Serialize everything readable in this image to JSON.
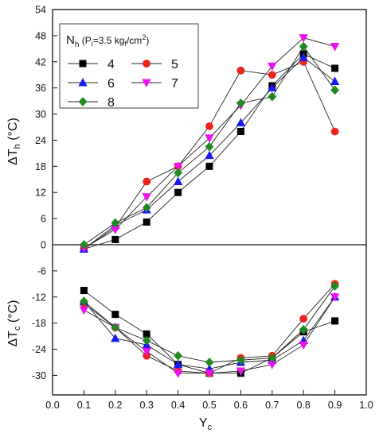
{
  "chart_data": {
    "type": "line",
    "x": [
      0.1,
      0.2,
      0.3,
      0.4,
      0.5,
      0.6,
      0.7,
      0.8,
      0.9
    ],
    "xlabel": "Y",
    "xlabel_sub": "c",
    "xlim": [
      0.0,
      1.0
    ],
    "xticks": [
      "0.0",
      "0.1",
      "0.2",
      "0.3",
      "0.4",
      "0.5",
      "0.6",
      "0.7",
      "0.8",
      "0.9",
      "1.0"
    ],
    "ylim": [
      -32,
      54
    ],
    "yticks": [
      "54",
      "48",
      "42",
      "36",
      "30",
      "24",
      "18",
      "12",
      "6",
      "0",
      "-6",
      "-12",
      "-18",
      "-24",
      "-30"
    ],
    "ylabel_top": "ΔT",
    "ylabel_top_sub": "h",
    "ylabel_top_unit": " (°C)",
    "ylabel_bottom": "ΔT",
    "ylabel_bottom_sub": "c",
    "ylabel_bottom_unit": " (°C)",
    "grid": false,
    "legend": {
      "placement": "top-left",
      "title_main": "N",
      "title_sub": "h",
      "title_rest": " (P",
      "title_sub2": "i",
      "title_rest2": "=3.5 kg",
      "title_sub3": "f",
      "title_rest3": "/cm",
      "title_sup": "2",
      "title_end": ")"
    },
    "series": [
      {
        "name": "4",
        "color": "#000000",
        "marker": "square",
        "hot": [
          -1.0,
          1.2,
          5.2,
          12.0,
          18.0,
          26.0,
          36.5,
          43.8,
          40.5
        ],
        "cold": [
          -10.5,
          -16.0,
          -20.5,
          -27.5,
          -29.5,
          -29.5,
          -26.0,
          -20.0,
          -17.5
        ]
      },
      {
        "name": "5",
        "color": "#e8251e",
        "marker": "circle",
        "hot": [
          -1.0,
          4.0,
          14.5,
          18.0,
          27.2,
          40.0,
          39.0,
          42.0,
          26.0
        ],
        "cold": [
          -13.5,
          -19.0,
          -25.5,
          -29.0,
          -29.5,
          -26.0,
          -25.5,
          -17.0,
          -9.0
        ]
      },
      {
        "name": "6",
        "color": "#1a1aef",
        "marker": "triangle-up",
        "hot": [
          -1.0,
          4.5,
          8.0,
          14.5,
          20.5,
          28.0,
          36.0,
          43.0,
          37.5
        ],
        "cold": [
          -13.0,
          -21.5,
          -23.0,
          -27.5,
          -28.5,
          -27.0,
          -26.5,
          -22.0,
          -12.0
        ]
      },
      {
        "name": "7",
        "color": "#ef10ef",
        "marker": "triangle-down",
        "hot": [
          -0.8,
          3.5,
          11.0,
          18.0,
          24.5,
          32.0,
          41.0,
          47.5,
          45.5
        ],
        "cold": [
          -15.0,
          -19.0,
          -24.5,
          -29.5,
          -29.5,
          -29.0,
          -27.5,
          -23.0,
          -12.0
        ]
      },
      {
        "name": "8",
        "color": "#1f8a1f",
        "marker": "diamond",
        "hot": [
          0.0,
          5.0,
          8.5,
          16.5,
          22.5,
          32.5,
          34.0,
          45.5,
          35.5
        ],
        "cold": [
          -13.0,
          -19.0,
          -22.0,
          -25.5,
          -27.0,
          -26.5,
          -26.0,
          -19.5,
          -9.5
        ]
      }
    ]
  }
}
